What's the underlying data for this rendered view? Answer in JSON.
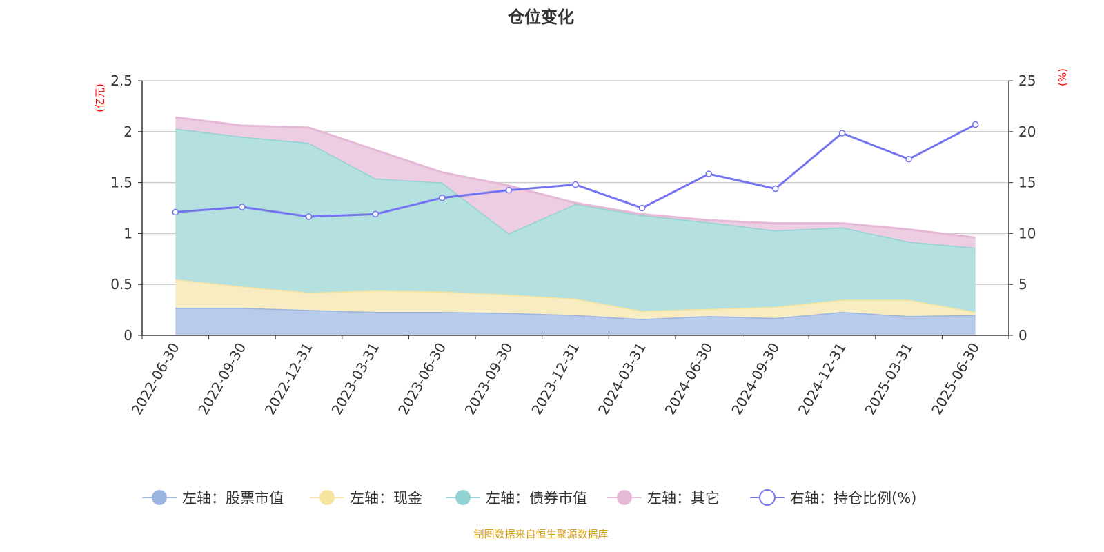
{
  "chart_data": {
    "type": "area",
    "title": "仓位变化",
    "left_unit": "(亿元)",
    "right_unit": "(%)",
    "categories": [
      "2022-06-30",
      "2022-09-30",
      "2022-12-31",
      "2023-03-31",
      "2023-06-30",
      "2023-09-30",
      "2023-12-31",
      "2024-03-31",
      "2024-06-30",
      "2024-09-30",
      "2024-12-31",
      "2025-03-31",
      "2025-06-30"
    ],
    "ylim_left": [
      0,
      2.5
    ],
    "yticks_left": [
      "0",
      "0.5",
      "1",
      "1.5",
      "2",
      "2.5"
    ],
    "ylim_right": [
      0,
      25
    ],
    "yticks_right": [
      "0",
      "5",
      "10",
      "15",
      "20",
      "25"
    ],
    "stacked": true,
    "grid": true,
    "legend_position": "bottom",
    "series": [
      {
        "name": "左轴：股票市值",
        "axis": "left",
        "color": "#9bb5e0",
        "fill": "#b8cbea",
        "values": [
          0.27,
          0.27,
          0.25,
          0.23,
          0.23,
          0.22,
          0.2,
          0.16,
          0.19,
          0.17,
          0.23,
          0.19,
          0.2
        ]
      },
      {
        "name": "左轴：现金",
        "axis": "left",
        "color": "#f6e49e",
        "fill": "#f8edc2",
        "values": [
          0.28,
          0.21,
          0.17,
          0.21,
          0.2,
          0.18,
          0.16,
          0.08,
          0.07,
          0.11,
          0.12,
          0.16,
          0.03
        ]
      },
      {
        "name": "左轴：债券市值",
        "axis": "left",
        "color": "#93d2d3",
        "fill": "#b4e0e0",
        "values": [
          1.48,
          1.47,
          1.47,
          1.1,
          1.07,
          0.6,
          0.93,
          0.94,
          0.85,
          0.75,
          0.71,
          0.57,
          0.63
        ]
      },
      {
        "name": "左轴：其它",
        "axis": "left",
        "color": "#e6b8d8",
        "fill": "#eccde2",
        "values": [
          0.11,
          0.11,
          0.15,
          0.28,
          0.1,
          0.47,
          0.01,
          0.01,
          0.02,
          0.07,
          0.04,
          0.12,
          0.1
        ]
      },
      {
        "name": "右轴：持仓比例(%)",
        "axis": "right",
        "type": "line",
        "color": "#7474f0",
        "values": [
          12.1,
          12.6,
          11.65,
          11.9,
          13.5,
          14.25,
          14.8,
          12.5,
          15.85,
          14.4,
          19.85,
          17.3,
          20.7
        ]
      }
    ]
  },
  "footer": "制图数据来自恒生聚源数据库"
}
